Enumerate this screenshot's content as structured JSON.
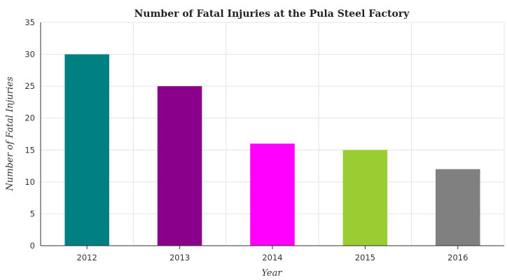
{
  "chart_data": {
    "type": "bar",
    "title": "Number of Fatal Injuries at the Pula Steel Factory",
    "xlabel": "Year",
    "ylabel": "Number of Fatal Injuries",
    "categories": [
      "2012",
      "2013",
      "2014",
      "2015",
      "2016"
    ],
    "values": [
      30,
      25,
      16,
      15,
      12
    ],
    "colors": [
      "#008080",
      "#8b008b",
      "#ff00ff",
      "#9acd32",
      "#808080"
    ],
    "ylim": [
      0,
      35
    ],
    "yticks": [
      0,
      5,
      10,
      15,
      20,
      25,
      30,
      35
    ],
    "grid": true,
    "legend": "none"
  }
}
